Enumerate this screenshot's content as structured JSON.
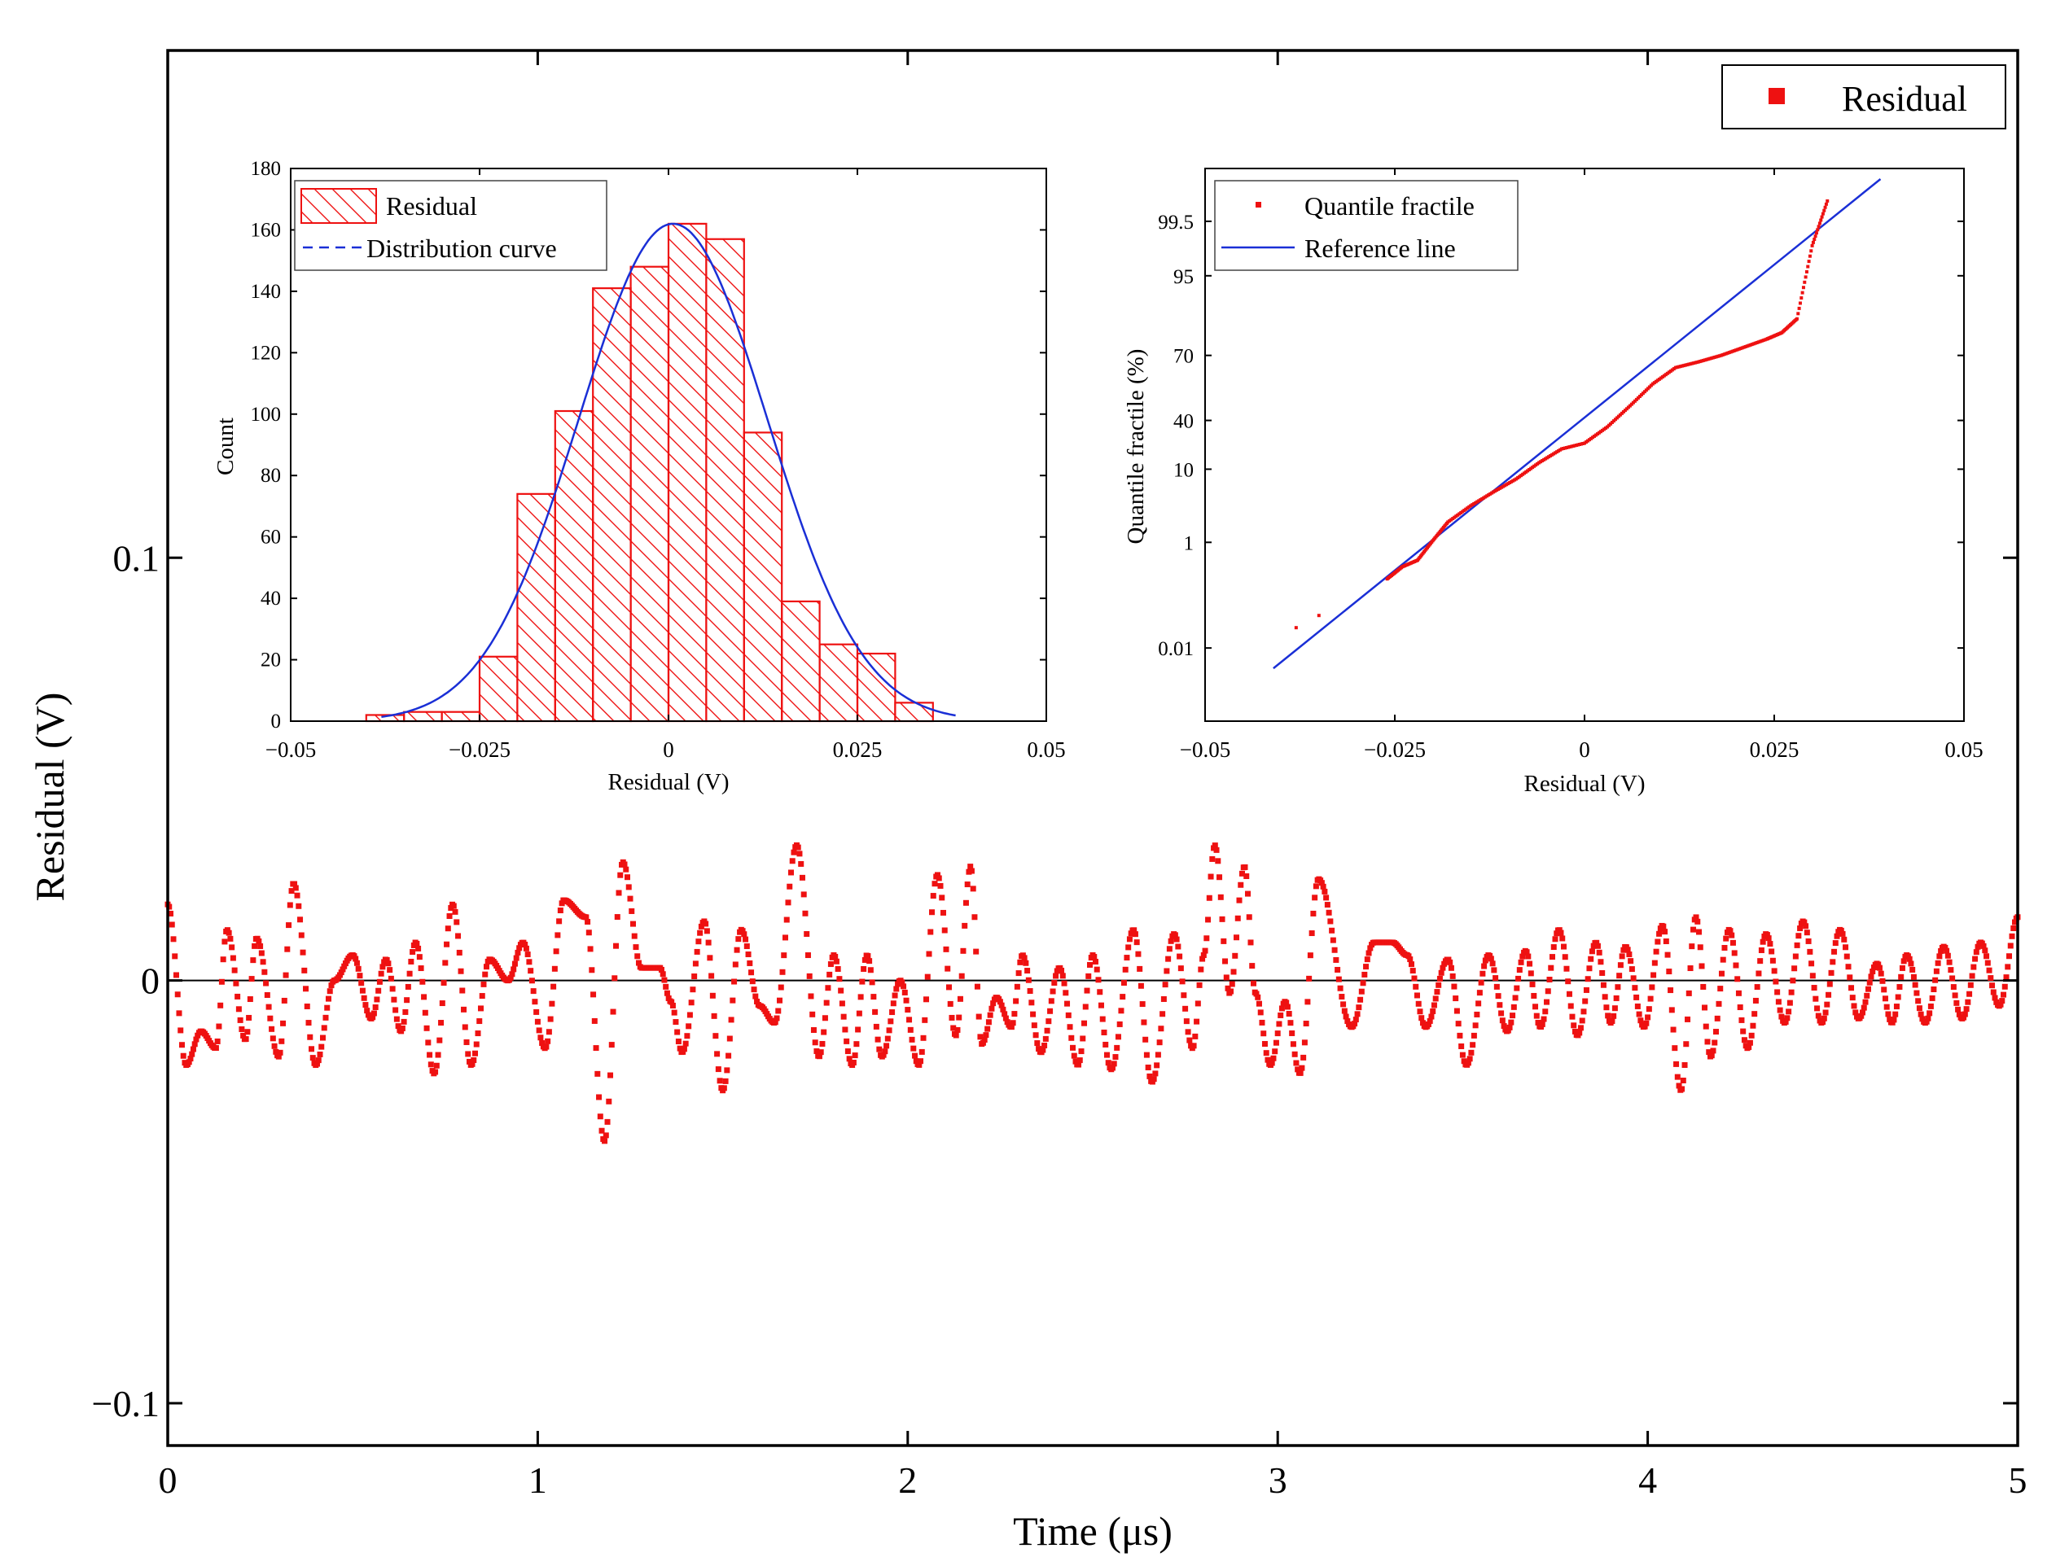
{
  "colors": {
    "residual": "#ee1111",
    "curve": "#1a2fd6",
    "axis": "#000000",
    "zero": "#000000"
  },
  "chart_data": [
    {
      "type": "scatter",
      "role": "main",
      "xlabel": "Time (μs)",
      "ylabel": "Residual (V)",
      "xlim": [
        0,
        5
      ],
      "ylim": [
        -0.11,
        0.22
      ],
      "xticks": [
        0,
        1,
        2,
        3,
        4,
        5
      ],
      "xticklabels": [
        "0",
        "1",
        "2",
        "3",
        "4",
        "5"
      ],
      "yticks": [
        -0.1,
        0,
        0.1
      ],
      "yticklabels": [
        "−0.1",
        "0",
        "0.1"
      ],
      "zero_line": 0,
      "legend": {
        "label": "Residual",
        "position": "top-right"
      },
      "series": [
        {
          "name": "Residual",
          "x": [
            0,
            0.05,
            0.09,
            0.13,
            0.16,
            0.21,
            0.24,
            0.3,
            0.34,
            0.4,
            0.45,
            0.5,
            0.55,
            0.59,
            0.63,
            0.67,
            0.72,
            0.77,
            0.82,
            0.87,
            0.92,
            0.96,
            1.02,
            1.07,
            1.13,
            1.18,
            1.23,
            1.28,
            1.33,
            1.36,
            1.39,
            1.45,
            1.5,
            1.55,
            1.6,
            1.64,
            1.7,
            1.76,
            1.8,
            1.85,
            1.89,
            1.93,
            1.98,
            2.03,
            2.08,
            2.13,
            2.17,
            2.2,
            2.24,
            2.28,
            2.31,
            2.36,
            2.41,
            2.46,
            2.5,
            2.55,
            2.61,
            2.66,
            2.72,
            2.77,
            2.8,
            2.83,
            2.87,
            2.91,
            2.94,
            2.98,
            3.02,
            3.06,
            3.11,
            3.2,
            3.26,
            3.31,
            3.35,
            3.4,
            3.46,
            3.51,
            3.57,
            3.62,
            3.67,
            3.71,
            3.76,
            3.81,
            3.86,
            3.9,
            3.94,
            3.99,
            4.04,
            4.09,
            4.13,
            4.17,
            4.22,
            4.27,
            4.32,
            4.37,
            4.42,
            4.47,
            4.52,
            4.57,
            4.62,
            4.66,
            4.7,
            4.75,
            4.8,
            4.85,
            4.9,
            4.95,
            5.0
          ],
          "y": [
            0.018,
            -0.02,
            -0.012,
            -0.016,
            0.012,
            -0.014,
            0.01,
            -0.018,
            0.023,
            -0.02,
            0.0,
            0.006,
            -0.009,
            0.005,
            -0.012,
            0.009,
            -0.022,
            0.018,
            -0.02,
            0.005,
            0.0,
            0.009,
            -0.016,
            0.019,
            0.015,
            -0.038,
            0.028,
            0.003,
            0.003,
            -0.005,
            -0.017,
            0.014,
            -0.026,
            0.012,
            -0.006,
            -0.01,
            0.032,
            -0.018,
            0.006,
            -0.02,
            0.006,
            -0.018,
            0.0,
            -0.02,
            0.025,
            -0.013,
            0.027,
            -0.015,
            -0.004,
            -0.011,
            0.006,
            -0.017,
            0.003,
            -0.02,
            0.006,
            -0.021,
            0.012,
            -0.024,
            0.011,
            -0.016,
            0.006,
            0.032,
            -0.003,
            0.027,
            -0.003,
            -0.02,
            -0.005,
            -0.022,
            0.024,
            -0.011,
            0.009,
            0.009,
            0.006,
            -0.011,
            0.005,
            -0.02,
            0.006,
            -0.012,
            0.007,
            -0.011,
            0.012,
            -0.013,
            0.009,
            -0.01,
            0.008,
            -0.011,
            0.013,
            -0.026,
            0.015,
            -0.018,
            0.012,
            -0.016,
            0.011,
            -0.01,
            0.014,
            -0.01,
            0.012,
            -0.009,
            0.004,
            -0.01,
            0.006,
            -0.01,
            0.008,
            -0.009,
            0.009,
            -0.006,
            0.015
          ]
        }
      ]
    },
    {
      "type": "bar",
      "role": "histogram-inset",
      "xlabel": "Residual (V)",
      "ylabel": "Count",
      "xlim": [
        -0.05,
        0.05
      ],
      "ylim": [
        0,
        180
      ],
      "xticks": [
        -0.05,
        -0.025,
        0,
        0.025,
        0.05
      ],
      "xticklabels": [
        "−0.05",
        "−0.025",
        "0",
        "0.025",
        "0.05"
      ],
      "yticks": [
        0,
        20,
        40,
        60,
        80,
        100,
        120,
        140,
        160,
        180
      ],
      "yticklabels": [
        "0",
        "20",
        "40",
        "60",
        "80",
        "100",
        "120",
        "140",
        "160",
        "180"
      ],
      "bin_width": 0.005,
      "bin_left_edges": [
        -0.04,
        -0.035,
        -0.03,
        -0.025,
        -0.02,
        -0.015,
        -0.01,
        -0.005,
        0.0,
        0.005,
        0.01,
        0.015,
        0.02,
        0.025,
        0.03
      ],
      "values": [
        2,
        3,
        3,
        21,
        74,
        101,
        141,
        148,
        162,
        157,
        94,
        39,
        25,
        22,
        6
      ],
      "curve": {
        "name": "Distribution curve",
        "mean": 0.0006,
        "sd": 0.0125,
        "peak": 162,
        "x_range": [
          -0.038,
          0.038
        ]
      },
      "legend": [
        {
          "label": "Residual"
        },
        {
          "label": "Distribution curve"
        }
      ]
    },
    {
      "type": "scatter",
      "role": "probability-plot-inset",
      "xlabel": "Residual (V)",
      "ylabel": "Quantile fractile (%)",
      "xlim": [
        -0.05,
        0.05
      ],
      "ylim": [
        -3.4,
        3.4
      ],
      "xticks": [
        -0.05,
        -0.025,
        0,
        0.025,
        0.05
      ],
      "xticklabels": [
        "−0.05",
        "−0.025",
        "0",
        "0.025",
        "0.05"
      ],
      "yticks": [
        -2.5,
        -1.2,
        -0.3,
        0.3,
        1.1,
        2.08
      ],
      "yticklabels": [
        "0.01",
        "1",
        "10",
        "40",
        "70",
        "95"
      ],
      "yticks_top": [
        2.75
      ],
      "yticklabels_top": [
        "99.5"
      ],
      "reference_line": {
        "name": "Reference line",
        "x": [
          -0.041,
          0.039
        ],
        "y": [
          -2.75,
          3.27
        ]
      },
      "points": {
        "name": "Quantile fractile",
        "x": [
          -0.038,
          -0.035,
          -0.026,
          -0.024,
          -0.022,
          -0.02,
          -0.018,
          -0.015,
          -0.012,
          -0.009,
          -0.006,
          -0.003,
          0.0,
          0.003,
          0.006,
          0.009,
          0.012,
          0.015,
          0.018,
          0.021,
          0.024,
          0.026,
          0.028,
          0.03,
          0.032
        ],
        "y": [
          -2.25,
          -2.1,
          -1.65,
          -1.5,
          -1.42,
          -1.18,
          -0.95,
          -0.75,
          -0.58,
          -0.42,
          -0.22,
          -0.05,
          0.02,
          0.22,
          0.48,
          0.75,
          0.95,
          1.02,
          1.1,
          1.2,
          1.3,
          1.38,
          1.55,
          2.45,
          3.0
        ]
      },
      "legend": [
        {
          "label": "Quantile fractile"
        },
        {
          "label": "Reference line"
        }
      ]
    }
  ]
}
